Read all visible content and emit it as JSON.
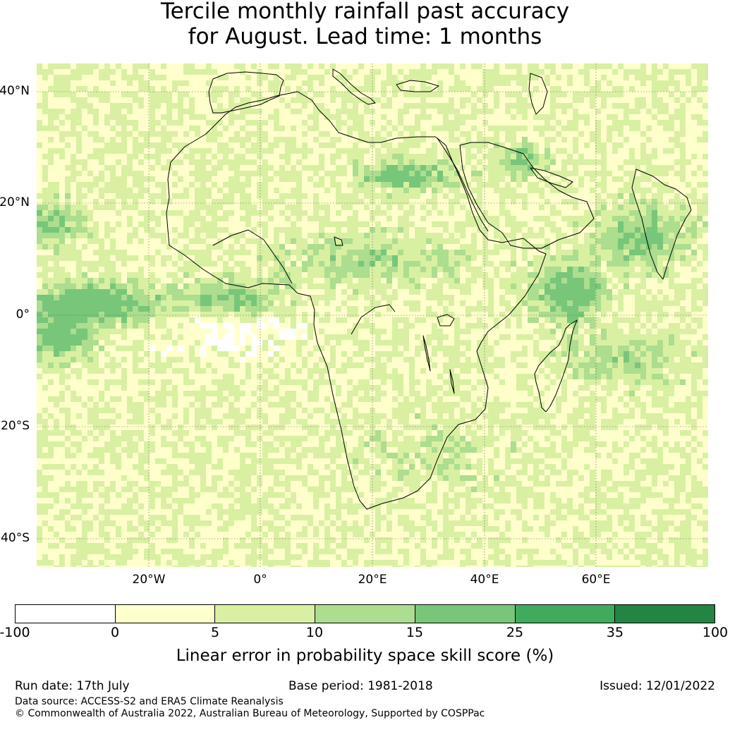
{
  "title_line1": "Tercile monthly rainfall past accuracy",
  "title_line2": "for August. Lead time: 1 months",
  "map": {
    "lon_range": [
      -40,
      80
    ],
    "lat_range": [
      -45,
      45
    ],
    "lat_ticks": [
      "40°N",
      "20°N",
      "0°",
      "20°S",
      "40°S"
    ],
    "lon_ticks": [
      "20°W",
      "0°",
      "20°E",
      "40°E",
      "60°E"
    ],
    "gridlines": "on, dotted"
  },
  "colorbar": {
    "label": "Linear error in probability space skill score (%)",
    "boundaries": [
      "-100",
      "0",
      "5",
      "10",
      "15",
      "25",
      "35",
      "100"
    ],
    "colors": [
      "#ffffff",
      "#ffffcc",
      "#d9f0a3",
      "#addd8e",
      "#78c679",
      "#41ab5d",
      "#238443"
    ]
  },
  "footer": {
    "run_date": "Run date: 17th July",
    "base_period": "Base period: 1981-2018",
    "issued": "Issued: 12/01/2022",
    "data_source": "Data source: ACCESS-S2 and ERA5 Climate Reanalysis",
    "copyright": "© Commonwealth of Australia 2022, Australian Bureau of Meteorology, Supported by COSPPac"
  }
}
